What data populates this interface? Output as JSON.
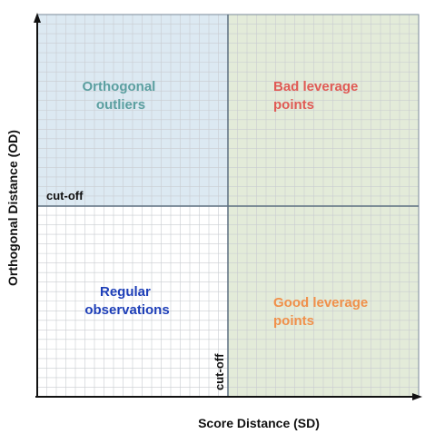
{
  "diagram": {
    "quadrants": {
      "top_left": {
        "line1": "Orthogonal",
        "line2": "outliers",
        "color": "#5b9fa0",
        "fill": "#dce9f2"
      },
      "top_right": {
        "line1": "Bad leverage",
        "line2": "points",
        "color": "#e05a55",
        "fill": "#e3ebd9"
      },
      "bottom_left": {
        "line1": "Regular",
        "line2": "observations",
        "color": "#1e3fb8",
        "fill": "#ffffff"
      },
      "bottom_right": {
        "line1": "Good leverage",
        "line2": "points",
        "color": "#f0904a",
        "fill": "#e3ebd9"
      }
    },
    "cutoff_horizontal": "cut-off",
    "cutoff_vertical": "cut-off",
    "x_axis_title": "Score Distance (SD)",
    "y_axis_title": "Orthogonal Distance (OD)",
    "colors": {
      "grid": "#c9ccd0",
      "divider": "#5c6f80",
      "axis": "#111111"
    }
  }
}
